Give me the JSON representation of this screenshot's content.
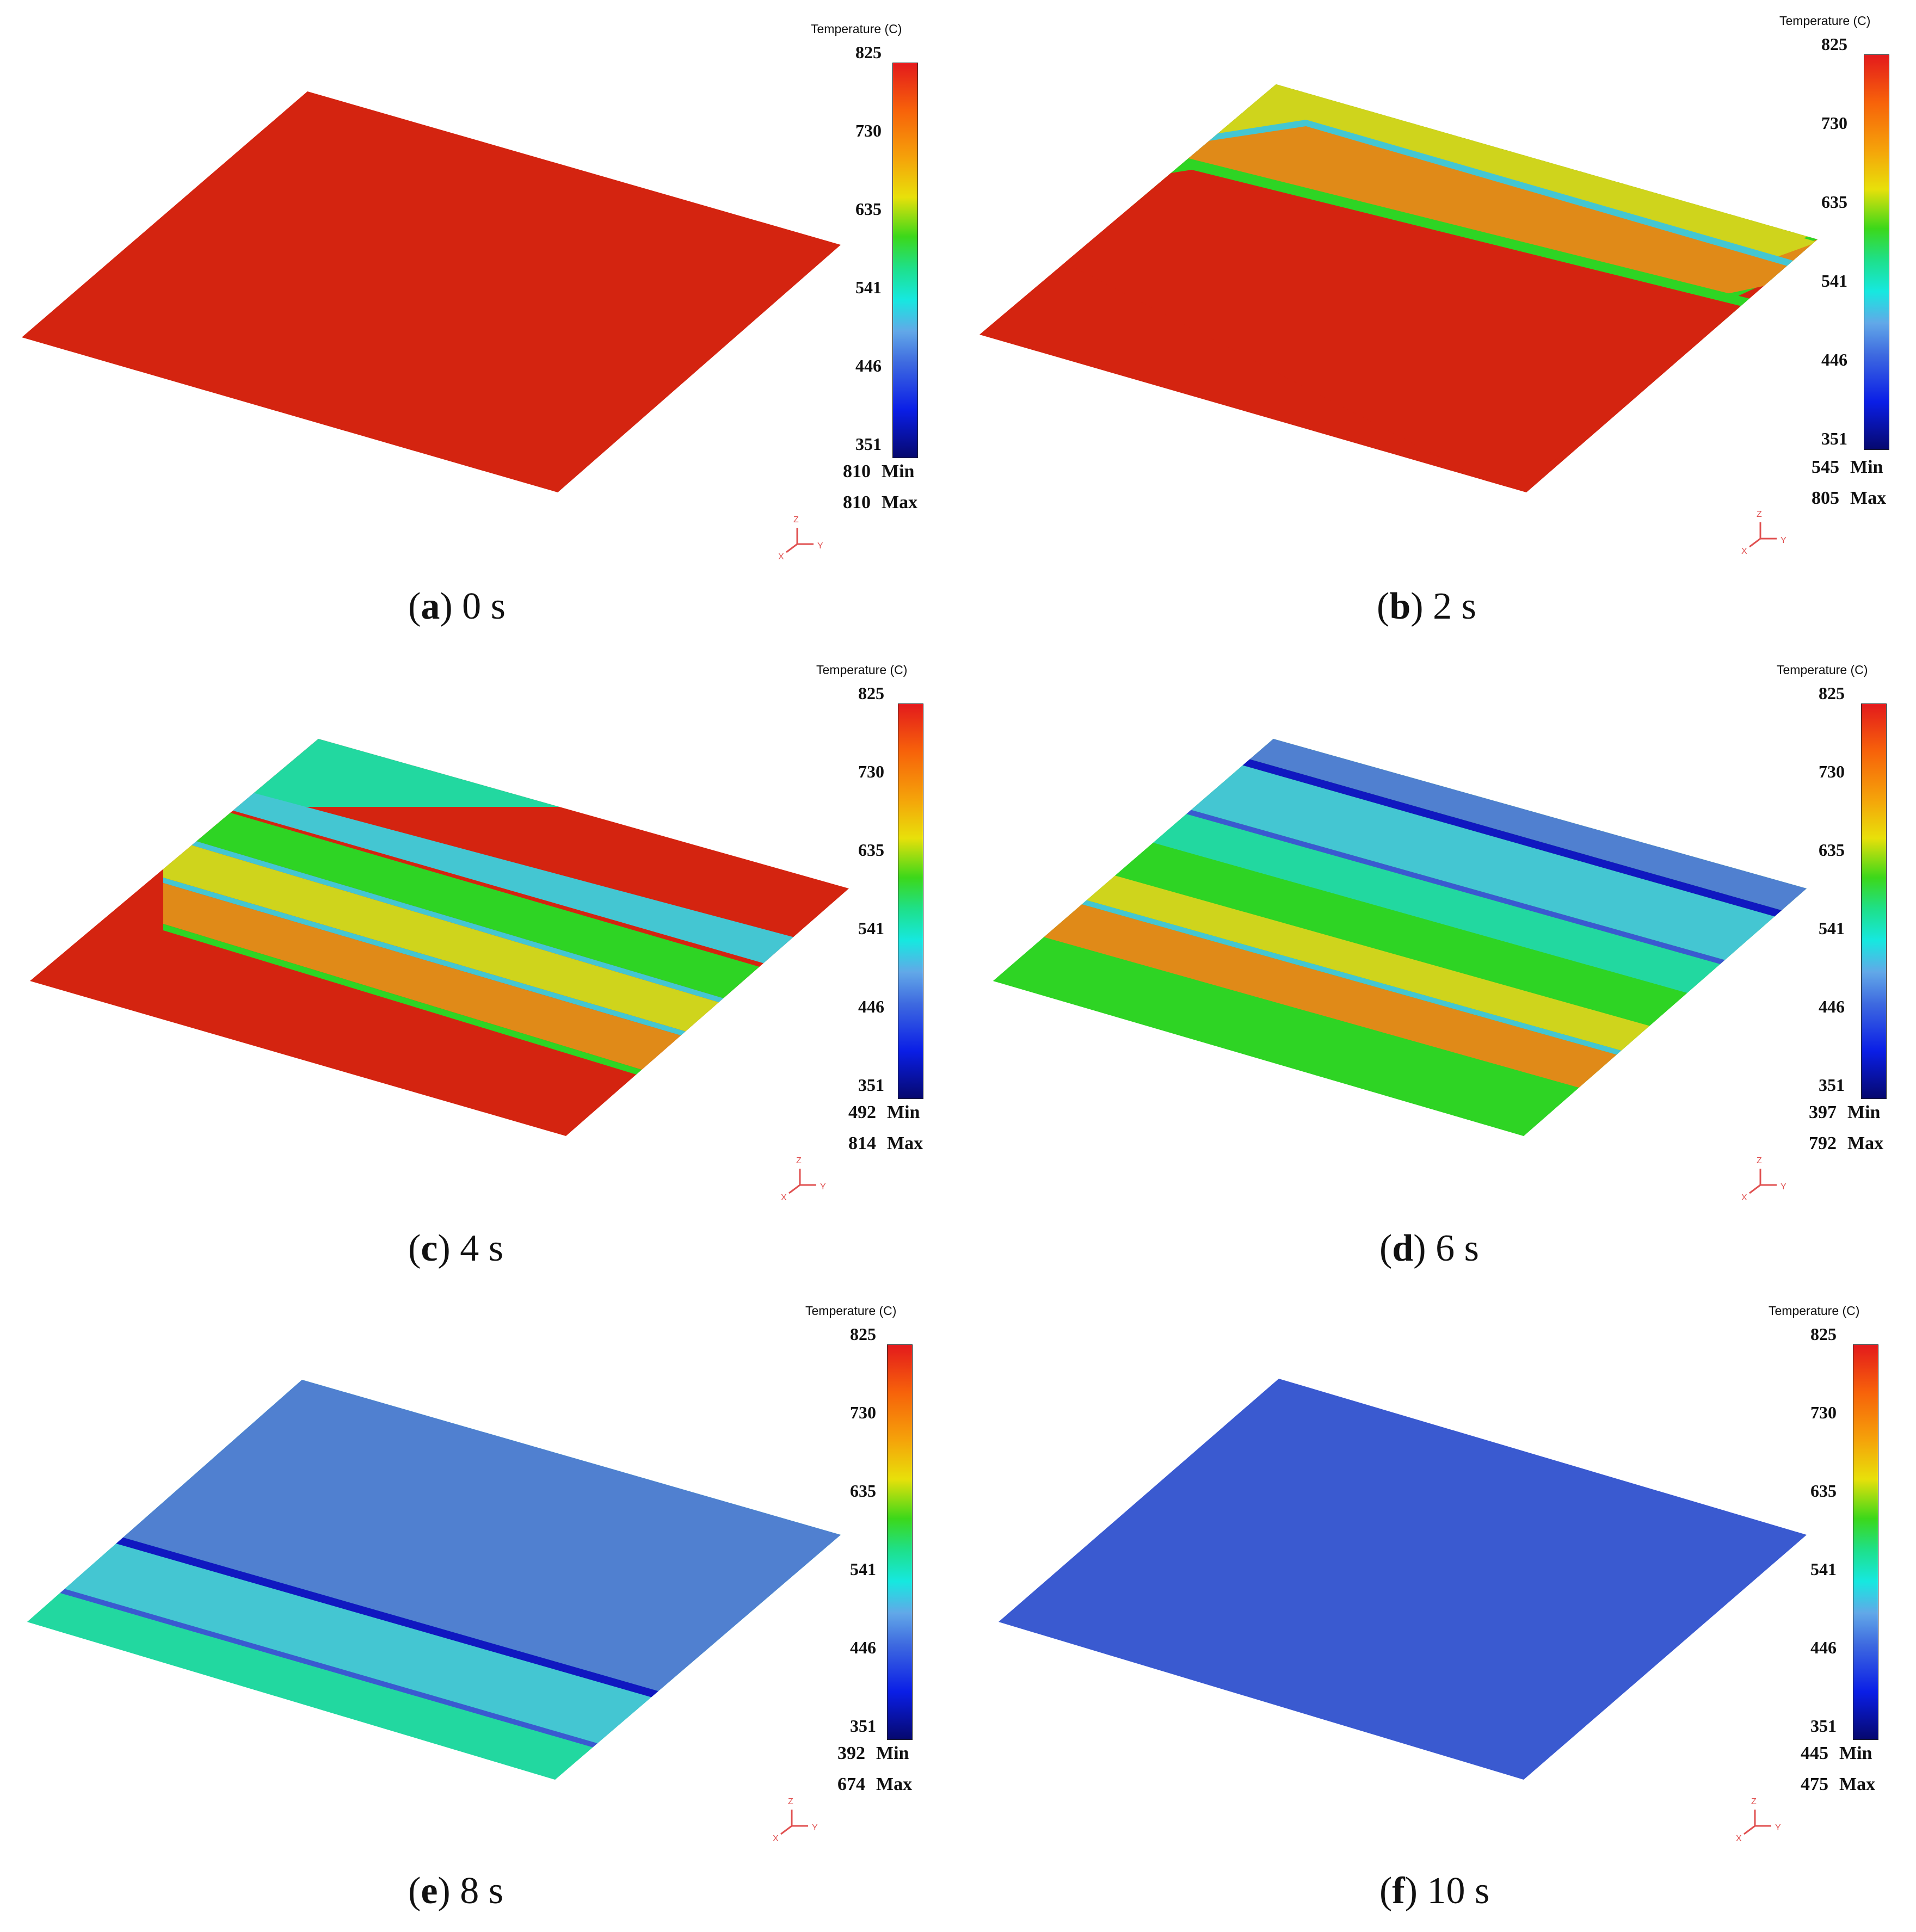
{
  "legend_title": "Temperature (C)",
  "scale_ticks": [
    "825",
    "730",
    "635",
    "541",
    "446",
    "351"
  ],
  "min_word": "Min",
  "max_word": "Max",
  "axis_labels": {
    "z": "Z",
    "y": "Y",
    "x": "X"
  },
  "panels": [
    {
      "letter": "a",
      "time": "0 s",
      "min": "810",
      "max": "810"
    },
    {
      "letter": "b",
      "time": "2 s",
      "min": "545",
      "max": "805"
    },
    {
      "letter": "c",
      "time": "4 s",
      "min": "492",
      "max": "814"
    },
    {
      "letter": "d",
      "time": "6 s",
      "min": "397",
      "max": "792"
    },
    {
      "letter": "e",
      "time": "8 s",
      "min": "392",
      "max": "674"
    },
    {
      "letter": "f",
      "time": "10 s",
      "min": "445",
      "max": "475"
    }
  ],
  "colors": {
    "hot": "#d42410",
    "orange": "#e08a18",
    "yellow": "#cfd41c",
    "green": "#2ed424",
    "teal": "#22d8a0",
    "cyan": "#44c6d2",
    "lightblue": "#5080d0",
    "blue": "#3a5ad0",
    "darkblue": "#1018c0"
  }
}
